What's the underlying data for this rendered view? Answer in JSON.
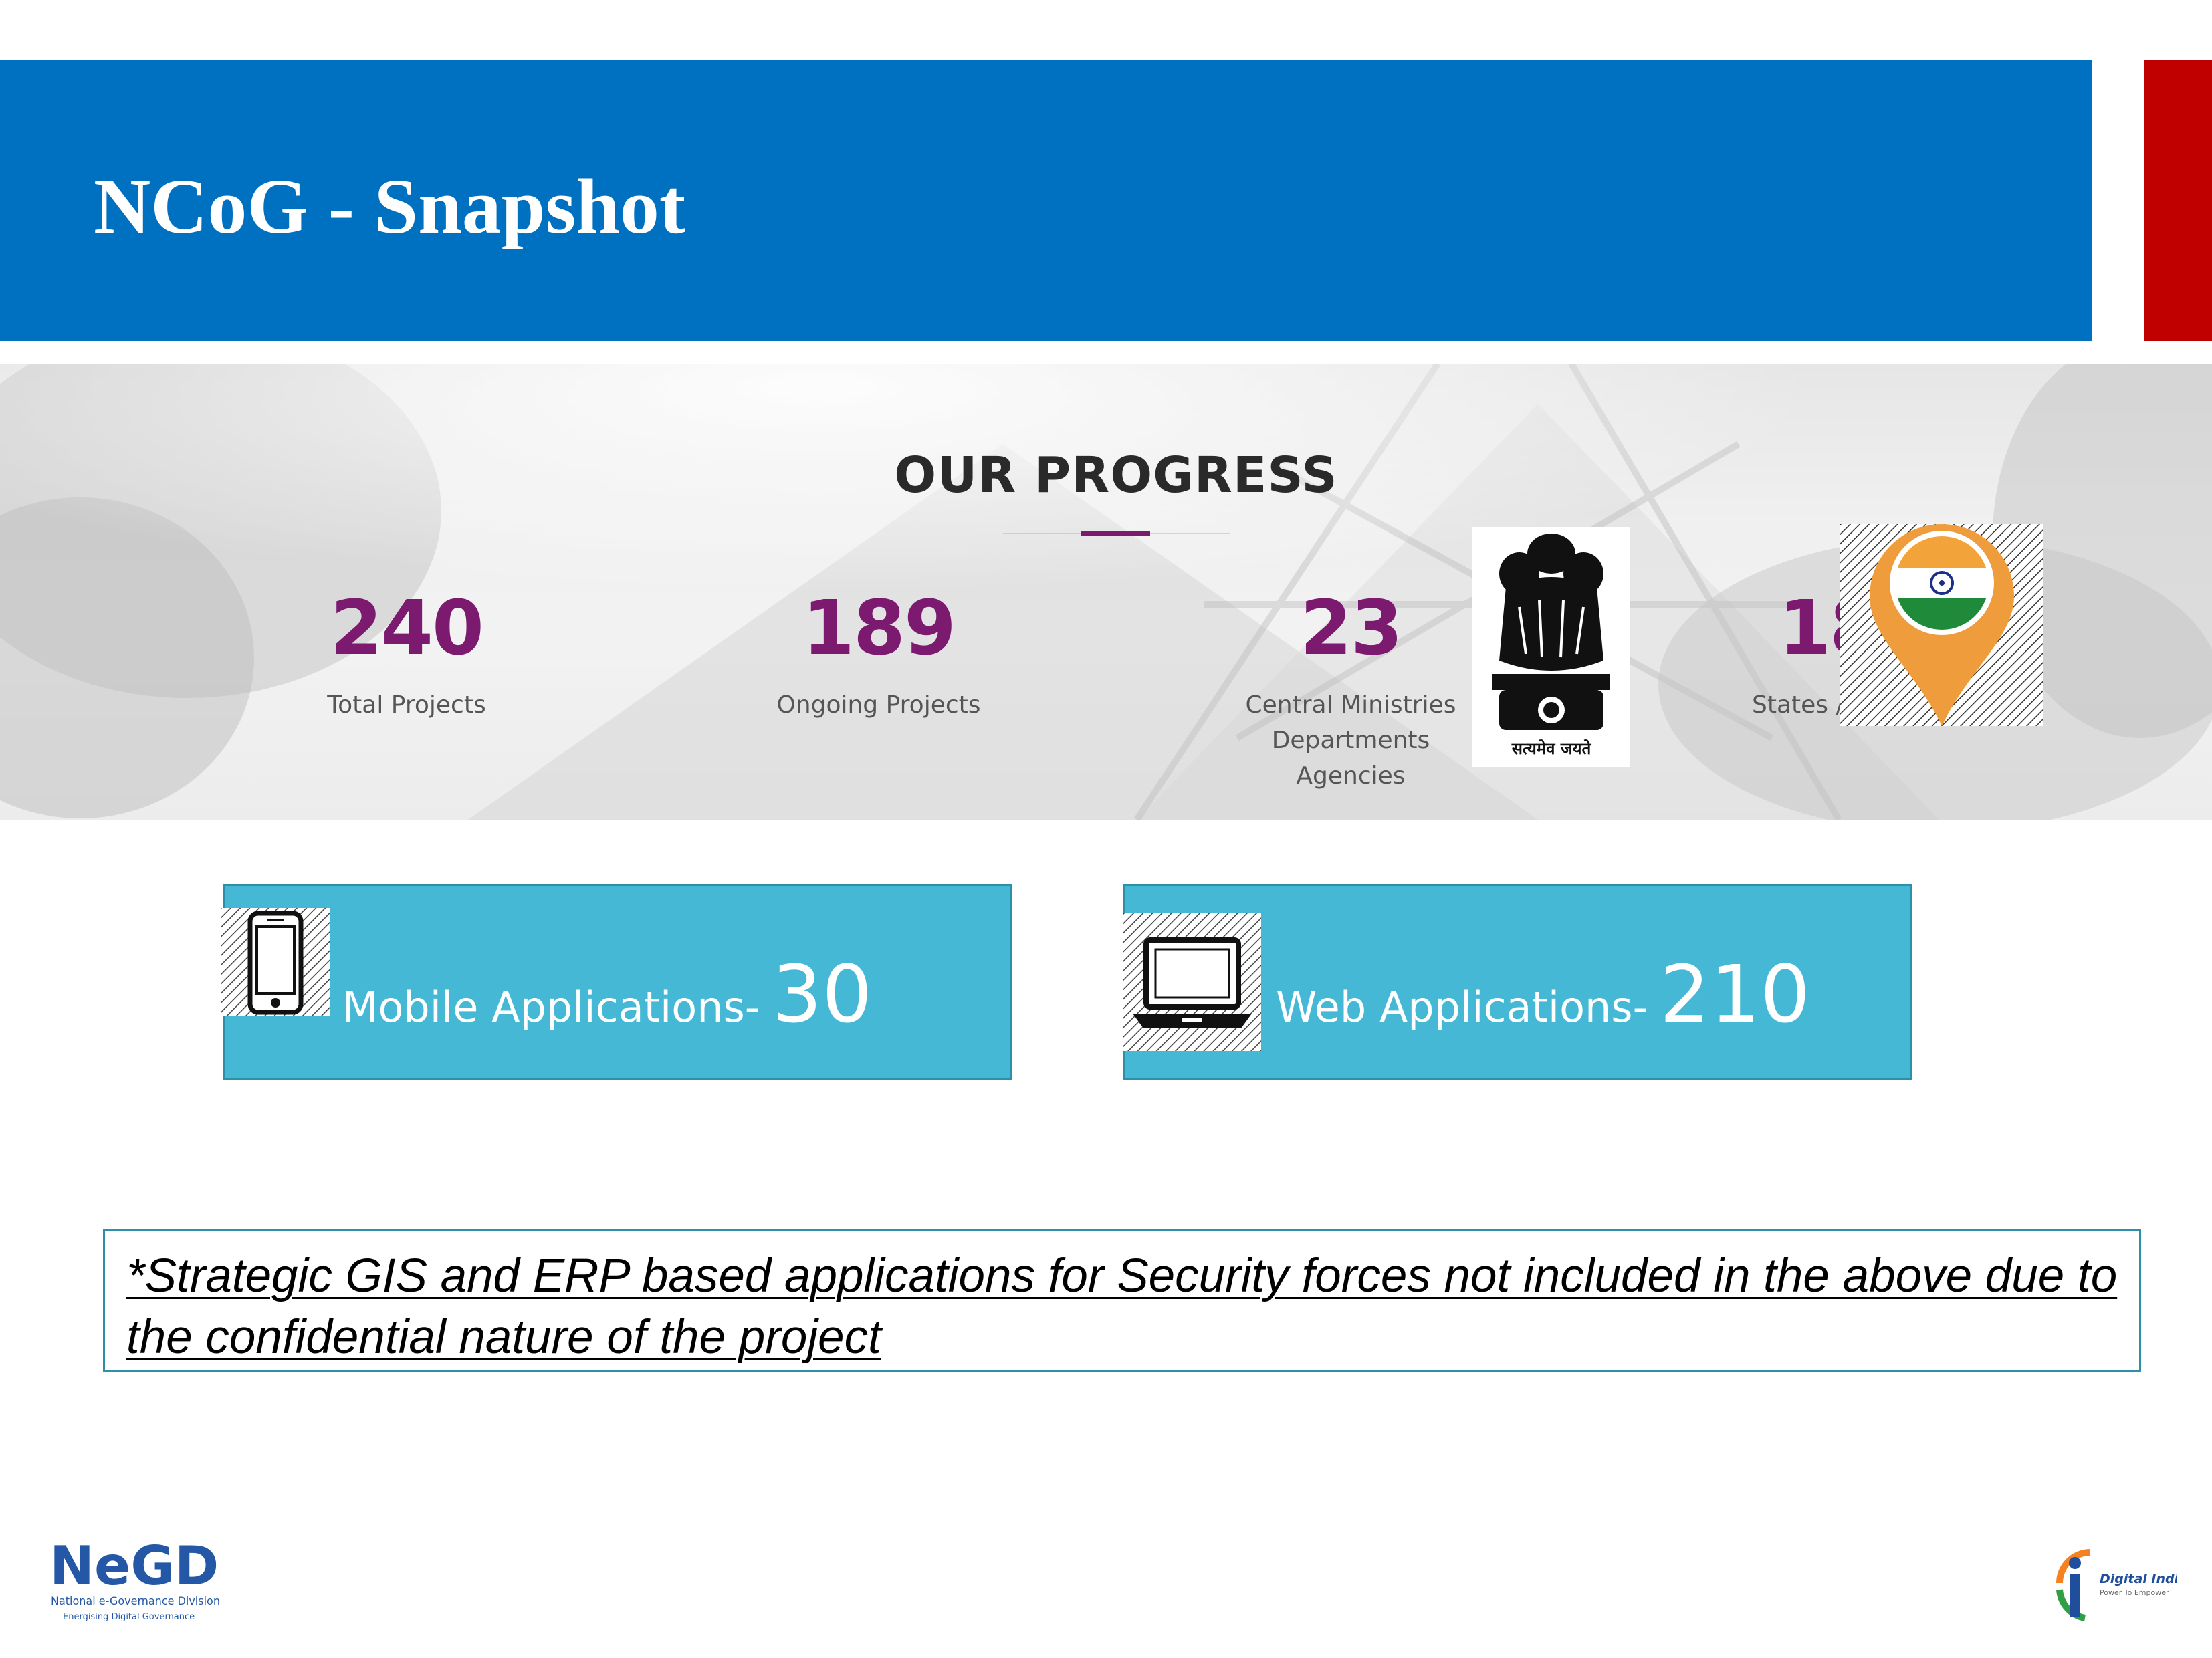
{
  "header": {
    "title": "NCoG - Snapshot",
    "accent_color": "#0070c0",
    "side_accent_color": "#c00000"
  },
  "progress": {
    "heading": "OUR PROGRESS",
    "stats": [
      {
        "value": "240",
        "label": "Total Projects"
      },
      {
        "value": "189",
        "label": "Ongoing Projects"
      },
      {
        "value": "23",
        "label_lines": [
          "Central Ministries",
          "Departments",
          "Agencies"
        ]
      },
      {
        "value": "18",
        "label": "States /"
      }
    ],
    "value_color": "#7b1a6f",
    "emblem_caption": "सत्यमेव जयते"
  },
  "apps": {
    "mobile": {
      "label": "Mobile Applications-",
      "value": "30",
      "icon": "mobile-phone-icon"
    },
    "web": {
      "label": "Web Applications-",
      "value": "210",
      "icon": "laptop-icon"
    },
    "box_color": "#44b8d4"
  },
  "note": {
    "text": "*Strategic GIS and ERP based applications for Security  forces not included in the above due to the confidential nature of the project "
  },
  "footer": {
    "negd_logo": {
      "mark": "NeGD",
      "line1": "National e-Governance Division",
      "line2": "Energising Digital Governance"
    },
    "digital_india_logo": {
      "name": "Digital India",
      "tagline": "Power To Empower"
    }
  }
}
